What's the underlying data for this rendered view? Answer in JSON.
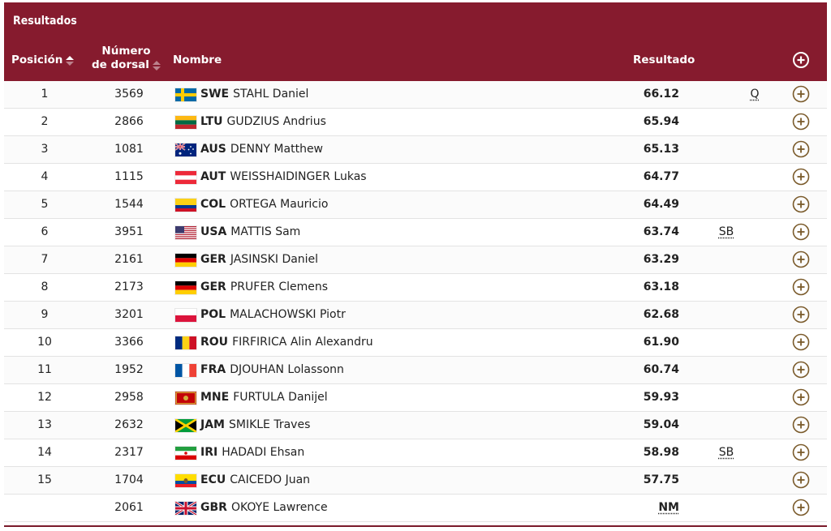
{
  "header": {
    "title": "Resultados",
    "col_pos": "Posición",
    "col_dorsal_line1": "Número",
    "col_dorsal_line2": "de dorsal",
    "col_name": "Nombre",
    "col_result": "Resultado",
    "expand_all_icon": "plus-circle-icon"
  },
  "colors": {
    "header_bg": "#861b2e",
    "plus_icon": "#7a5a2a"
  },
  "rows": [
    {
      "pos": "1",
      "dorsal": "3569",
      "noc": "SWE",
      "name": "STAHL Daniel",
      "result": "66.12",
      "mark": "Q",
      "flag": "swe"
    },
    {
      "pos": "2",
      "dorsal": "2866",
      "noc": "LTU",
      "name": "GUDZIUS Andrius",
      "result": "65.94",
      "mark": "",
      "flag": "ltu"
    },
    {
      "pos": "3",
      "dorsal": "1081",
      "noc": "AUS",
      "name": "DENNY Matthew",
      "result": "65.13",
      "mark": "",
      "flag": "aus"
    },
    {
      "pos": "4",
      "dorsal": "1115",
      "noc": "AUT",
      "name": "WEISSHAIDINGER Lukas",
      "result": "64.77",
      "mark": "",
      "flag": "aut"
    },
    {
      "pos": "5",
      "dorsal": "1544",
      "noc": "COL",
      "name": "ORTEGA Mauricio",
      "result": "64.49",
      "mark": "",
      "flag": "col"
    },
    {
      "pos": "6",
      "dorsal": "3951",
      "noc": "USA",
      "name": "MATTIS Sam",
      "result": "63.74",
      "mark": "SB",
      "flag": "usa"
    },
    {
      "pos": "7",
      "dorsal": "2161",
      "noc": "GER",
      "name": "JASINSKI Daniel",
      "result": "63.29",
      "mark": "",
      "flag": "ger"
    },
    {
      "pos": "8",
      "dorsal": "2173",
      "noc": "GER",
      "name": "PRUFER Clemens",
      "result": "63.18",
      "mark": "",
      "flag": "ger"
    },
    {
      "pos": "9",
      "dorsal": "3201",
      "noc": "POL",
      "name": "MALACHOWSKI Piotr",
      "result": "62.68",
      "mark": "",
      "flag": "pol"
    },
    {
      "pos": "10",
      "dorsal": "3366",
      "noc": "ROU",
      "name": "FIRFIRICA Alin Alexandru",
      "result": "61.90",
      "mark": "",
      "flag": "rou"
    },
    {
      "pos": "11",
      "dorsal": "1952",
      "noc": "FRA",
      "name": "DJOUHAN Lolassonn",
      "result": "60.74",
      "mark": "",
      "flag": "fra"
    },
    {
      "pos": "12",
      "dorsal": "2958",
      "noc": "MNE",
      "name": "FURTULA Danijel",
      "result": "59.93",
      "mark": "",
      "flag": "mne"
    },
    {
      "pos": "13",
      "dorsal": "2632",
      "noc": "JAM",
      "name": "SMIKLE Traves",
      "result": "59.04",
      "mark": "",
      "flag": "jam"
    },
    {
      "pos": "14",
      "dorsal": "2317",
      "noc": "IRI",
      "name": "HADADI Ehsan",
      "result": "58.98",
      "mark": "SB",
      "flag": "iri"
    },
    {
      "pos": "15",
      "dorsal": "1704",
      "noc": "ECU",
      "name": "CAICEDO Juan",
      "result": "57.75",
      "mark": "",
      "flag": "ecu"
    },
    {
      "pos": "",
      "dorsal": "2061",
      "noc": "GBR",
      "name": "OKOYE Lawrence",
      "result": "NM",
      "mark": "",
      "flag": "gbr"
    }
  ]
}
